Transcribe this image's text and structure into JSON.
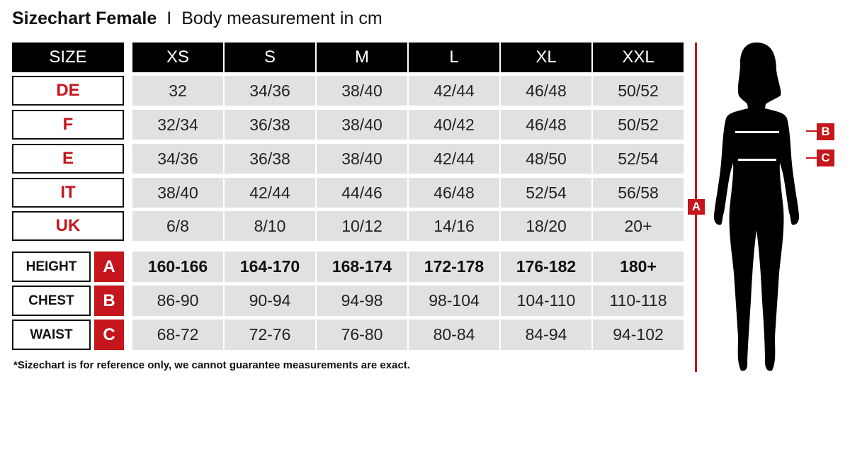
{
  "title": {
    "bold": "Sizechart Female",
    "separator": "I",
    "subtitle": "Body measurement in cm"
  },
  "header": {
    "label": "SIZE",
    "sizes": [
      "XS",
      "S",
      "M",
      "L",
      "XL",
      "XXL"
    ]
  },
  "conversion_rows": [
    {
      "label": "DE",
      "values": [
        "32",
        "34/36",
        "38/40",
        "42/44",
        "46/48",
        "50/52"
      ]
    },
    {
      "label": "F",
      "values": [
        "32/34",
        "36/38",
        "38/40",
        "40/42",
        "46/48",
        "50/52"
      ]
    },
    {
      "label": "E",
      "values": [
        "34/36",
        "36/38",
        "38/40",
        "42/44",
        "48/50",
        "52/54"
      ]
    },
    {
      "label": "IT",
      "values": [
        "38/40",
        "42/44",
        "44/46",
        "46/48",
        "52/54",
        "56/58"
      ]
    },
    {
      "label": "UK",
      "values": [
        "6/8",
        "8/10",
        "10/12",
        "14/16",
        "18/20",
        "20+"
      ]
    }
  ],
  "measurement_rows": [
    {
      "label": "HEIGHT",
      "letter": "A",
      "values": [
        "160-166",
        "164-170",
        "168-174",
        "172-178",
        "176-182",
        "180+"
      ]
    },
    {
      "label": "CHEST",
      "letter": "B",
      "values": [
        "86-90",
        "90-94",
        "94-98",
        "98-104",
        "104-110",
        "110-118"
      ]
    },
    {
      "label": "WAIST",
      "letter": "C",
      "values": [
        "68-72",
        "72-76",
        "76-80",
        "80-84",
        "84-94",
        "94-102"
      ]
    }
  ],
  "footnote": "*Sizechart is for reference only, we cannot guarantee measurements are exact.",
  "figure": {
    "height_marker": "A",
    "chest_marker": "B",
    "waist_marker": "C"
  },
  "colors": {
    "accent": "#c4161c",
    "header": "#000000",
    "cell": "#e1e1e1"
  }
}
